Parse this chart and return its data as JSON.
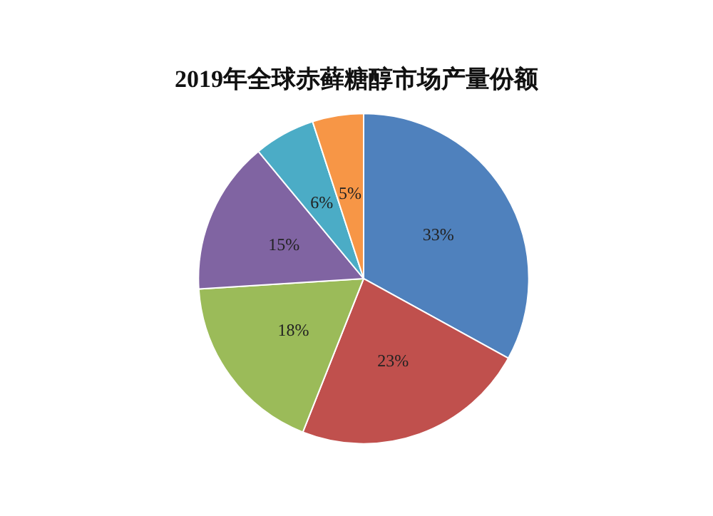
{
  "chart_data": {
    "type": "pie",
    "title": "2019年全球赤藓糖醇市场产量份额",
    "categories": [
      null,
      null,
      null,
      null,
      null,
      null
    ],
    "values": [
      33,
      23,
      18,
      15,
      6,
      5
    ],
    "value_labels": [
      "33%",
      "23%",
      "18%",
      "15%",
      "6%",
      "5%"
    ],
    "colors": [
      "#4f81bd",
      "#c0504d",
      "#9bbb59",
      "#8064a2",
      "#4bacc6",
      "#f79646"
    ]
  }
}
